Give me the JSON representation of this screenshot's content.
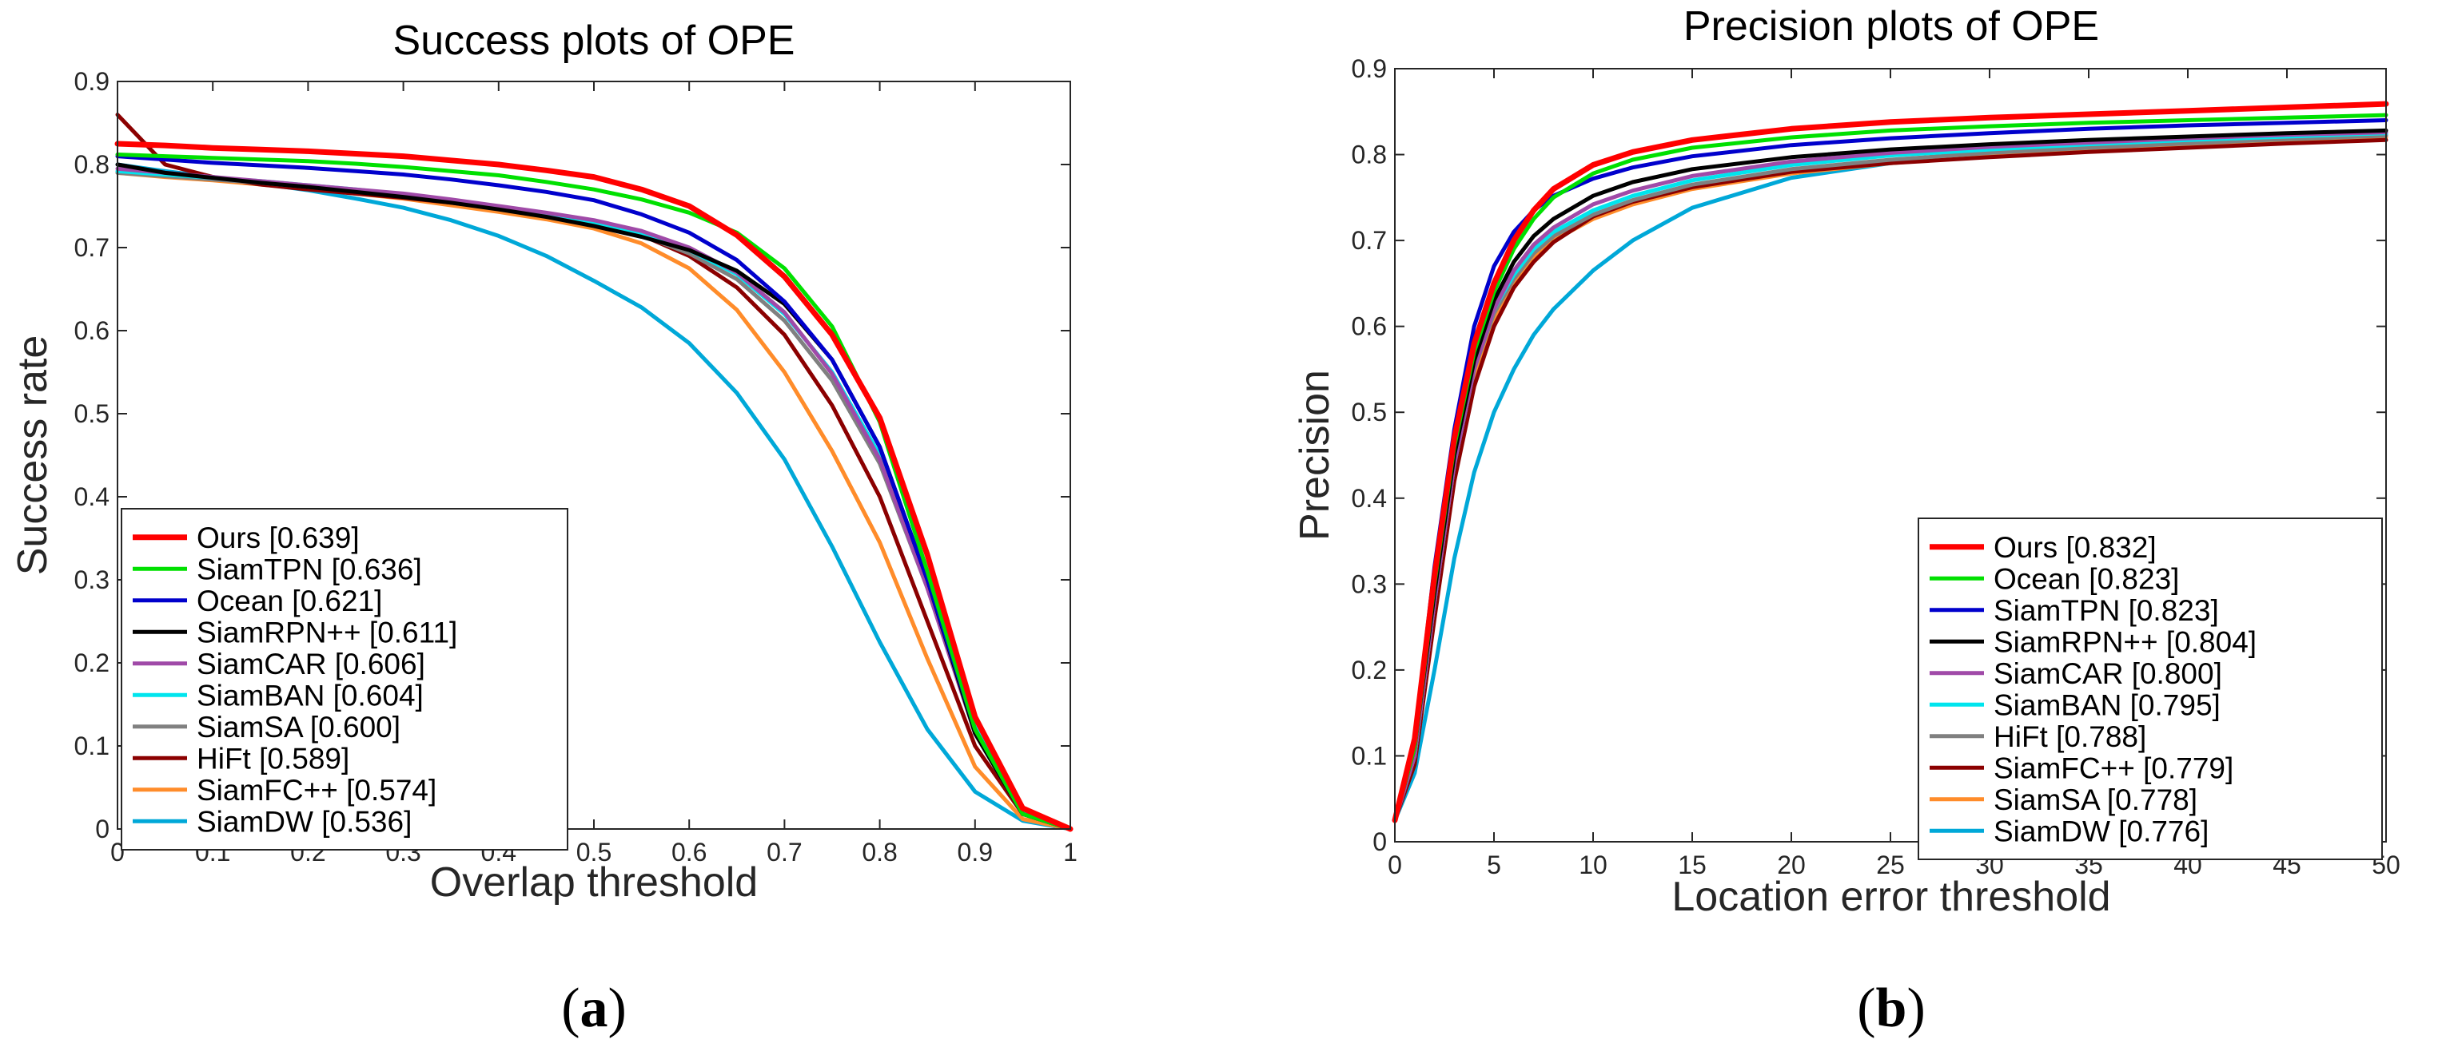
{
  "chart_data": [
    {
      "type": "line",
      "title": "Success plots of OPE",
      "xlabel": "Overlap threshold",
      "ylabel": "Success rate",
      "xlim": [
        0,
        1
      ],
      "ylim": [
        0,
        0.9
      ],
      "xticks": [
        "0",
        "0.1",
        "0.2",
        "0.3",
        "0.4",
        "0.5",
        "0.6",
        "0.7",
        "0.8",
        "0.9",
        "1"
      ],
      "yticks": [
        "0",
        "0.1",
        "0.2",
        "0.3",
        "0.4",
        "0.5",
        "0.6",
        "0.7",
        "0.8",
        "0.9"
      ],
      "legend_position": "bottom-left",
      "subfigure_label": {
        "open": "(",
        "letter": "a",
        "close": ")"
      },
      "x": [
        0,
        0.05,
        0.1,
        0.15,
        0.2,
        0.25,
        0.3,
        0.35,
        0.4,
        0.45,
        0.5,
        0.55,
        0.6,
        0.65,
        0.7,
        0.75,
        0.8,
        0.85,
        0.9,
        0.95,
        1.0
      ],
      "series": [
        {
          "name": "Ours [0.639]",
          "color": "#ff0000",
          "values": [
            0.825,
            0.823,
            0.82,
            0.818,
            0.816,
            0.813,
            0.81,
            0.805,
            0.8,
            0.793,
            0.785,
            0.77,
            0.75,
            0.715,
            0.665,
            0.595,
            0.495,
            0.33,
            0.135,
            0.025,
            0.0
          ]
        },
        {
          "name": "SiamTPN [0.636]",
          "color": "#00e000",
          "values": [
            0.812,
            0.81,
            0.808,
            0.806,
            0.804,
            0.801,
            0.797,
            0.792,
            0.787,
            0.779,
            0.77,
            0.758,
            0.742,
            0.718,
            0.675,
            0.605,
            0.49,
            0.31,
            0.12,
            0.018,
            0.0
          ]
        },
        {
          "name": "Ocean [0.621]",
          "color": "#0000cc",
          "values": [
            0.81,
            0.806,
            0.802,
            0.799,
            0.796,
            0.792,
            0.788,
            0.782,
            0.775,
            0.767,
            0.757,
            0.74,
            0.718,
            0.685,
            0.635,
            0.565,
            0.46,
            0.3,
            0.12,
            0.018,
            0.0
          ]
        },
        {
          "name": "SiamRPN++ [0.611]",
          "color": "#000000",
          "values": [
            0.8,
            0.79,
            0.784,
            0.778,
            0.773,
            0.767,
            0.761,
            0.754,
            0.746,
            0.737,
            0.726,
            0.713,
            0.697,
            0.672,
            0.632,
            0.565,
            0.46,
            0.3,
            0.115,
            0.018,
            0.0
          ]
        },
        {
          "name": "SiamCAR [0.606]",
          "color": "#a04aa8",
          "values": [
            0.795,
            0.79,
            0.785,
            0.78,
            0.775,
            0.77,
            0.765,
            0.758,
            0.75,
            0.742,
            0.733,
            0.72,
            0.7,
            0.67,
            0.622,
            0.548,
            0.445,
            0.29,
            0.115,
            0.018,
            0.0
          ]
        },
        {
          "name": "SiamBAN [0.604]",
          "color": "#00e5ee",
          "values": [
            0.792,
            0.788,
            0.784,
            0.78,
            0.775,
            0.77,
            0.764,
            0.757,
            0.749,
            0.741,
            0.731,
            0.717,
            0.697,
            0.668,
            0.62,
            0.55,
            0.45,
            0.3,
            0.125,
            0.02,
            0.0
          ]
        },
        {
          "name": "SiamSA [0.600]",
          "color": "#808080",
          "values": [
            0.79,
            0.786,
            0.782,
            0.778,
            0.773,
            0.768,
            0.762,
            0.755,
            0.747,
            0.739,
            0.729,
            0.715,
            0.693,
            0.662,
            0.612,
            0.54,
            0.44,
            0.29,
            0.12,
            0.02,
            0.0
          ]
        },
        {
          "name": "HiFt [0.589]",
          "color": "#8b0000",
          "values": [
            0.86,
            0.8,
            0.785,
            0.776,
            0.77,
            0.765,
            0.76,
            0.754,
            0.747,
            0.739,
            0.729,
            0.715,
            0.69,
            0.652,
            0.595,
            0.51,
            0.4,
            0.25,
            0.1,
            0.018,
            0.0
          ]
        },
        {
          "name": "SiamFC++ [0.574]",
          "color": "#ff8c2a",
          "values": [
            0.79,
            0.785,
            0.781,
            0.776,
            0.771,
            0.765,
            0.759,
            0.751,
            0.743,
            0.734,
            0.723,
            0.705,
            0.675,
            0.625,
            0.55,
            0.455,
            0.345,
            0.205,
            0.075,
            0.012,
            0.0
          ]
        },
        {
          "name": "SiamDW [0.536]",
          "color": "#00a8d8",
          "values": [
            0.8,
            0.792,
            0.785,
            0.777,
            0.769,
            0.759,
            0.748,
            0.733,
            0.714,
            0.69,
            0.66,
            0.628,
            0.585,
            0.525,
            0.445,
            0.34,
            0.225,
            0.12,
            0.045,
            0.01,
            0.0
          ]
        }
      ]
    },
    {
      "type": "line",
      "title": "Precision plots of OPE",
      "xlabel": "Location error threshold",
      "ylabel": "Precision",
      "xlim": [
        0,
        50
      ],
      "ylim": [
        0,
        0.9
      ],
      "xticks": [
        "0",
        "5",
        "10",
        "15",
        "20",
        "25",
        "30",
        "35",
        "40",
        "45",
        "50"
      ],
      "yticks": [
        "0",
        "0.1",
        "0.2",
        "0.3",
        "0.4",
        "0.5",
        "0.6",
        "0.7",
        "0.8",
        "0.9"
      ],
      "legend_position": "bottom-right",
      "subfigure_label": {
        "open": "(",
        "letter": "b",
        "close": ")"
      },
      "x": [
        0,
        1,
        2,
        3,
        4,
        5,
        6,
        7,
        8,
        10,
        12,
        15,
        20,
        25,
        30,
        35,
        40,
        45,
        50
      ],
      "series": [
        {
          "name": "Ours [0.832]",
          "color": "#ff0000",
          "values": [
            0.025,
            0.12,
            0.31,
            0.47,
            0.58,
            0.65,
            0.7,
            0.735,
            0.76,
            0.788,
            0.803,
            0.817,
            0.83,
            0.838,
            0.843,
            0.847,
            0.851,
            0.855,
            0.859
          ]
        },
        {
          "name": "Ocean [0.823]",
          "color": "#00e000",
          "values": [
            0.025,
            0.11,
            0.3,
            0.46,
            0.57,
            0.64,
            0.69,
            0.725,
            0.75,
            0.778,
            0.794,
            0.808,
            0.82,
            0.828,
            0.833,
            0.837,
            0.84,
            0.843,
            0.846
          ]
        },
        {
          "name": "SiamTPN [0.823]",
          "color": "#0000cc",
          "values": [
            0.025,
            0.12,
            0.32,
            0.48,
            0.6,
            0.67,
            0.71,
            0.735,
            0.752,
            0.772,
            0.785,
            0.798,
            0.811,
            0.819,
            0.825,
            0.83,
            0.834,
            0.837,
            0.84
          ]
        },
        {
          "name": "SiamRPN++ [0.804]",
          "color": "#000000",
          "values": [
            0.025,
            0.11,
            0.29,
            0.45,
            0.56,
            0.63,
            0.675,
            0.705,
            0.725,
            0.752,
            0.768,
            0.783,
            0.797,
            0.806,
            0.812,
            0.817,
            0.821,
            0.825,
            0.828
          ]
        },
        {
          "name": "SiamCAR [0.800]",
          "color": "#a04aa8",
          "values": [
            0.025,
            0.1,
            0.28,
            0.44,
            0.55,
            0.62,
            0.665,
            0.695,
            0.715,
            0.742,
            0.758,
            0.775,
            0.792,
            0.802,
            0.809,
            0.814,
            0.819,
            0.823,
            0.826
          ]
        },
        {
          "name": "SiamBAN [0.795]",
          "color": "#00e5ee",
          "values": [
            0.025,
            0.1,
            0.28,
            0.44,
            0.55,
            0.62,
            0.66,
            0.69,
            0.71,
            0.735,
            0.752,
            0.77,
            0.788,
            0.799,
            0.806,
            0.812,
            0.817,
            0.821,
            0.825
          ]
        },
        {
          "name": "HiFt [0.788]",
          "color": "#808080",
          "values": [
            0.025,
            0.1,
            0.28,
            0.44,
            0.55,
            0.615,
            0.655,
            0.685,
            0.705,
            0.73,
            0.747,
            0.765,
            0.783,
            0.794,
            0.802,
            0.808,
            0.813,
            0.818,
            0.822
          ]
        },
        {
          "name": "SiamFC++ [0.779]",
          "color": "#8b0000",
          "values": [
            0.025,
            0.09,
            0.26,
            0.42,
            0.53,
            0.6,
            0.645,
            0.675,
            0.698,
            0.728,
            0.745,
            0.762,
            0.78,
            0.79,
            0.797,
            0.803,
            0.808,
            0.813,
            0.817
          ]
        },
        {
          "name": "SiamSA [0.778]",
          "color": "#ff8c2a",
          "values": [
            0.025,
            0.1,
            0.27,
            0.43,
            0.54,
            0.61,
            0.65,
            0.68,
            0.7,
            0.725,
            0.742,
            0.76,
            0.778,
            0.79,
            0.798,
            0.805,
            0.81,
            0.815,
            0.82
          ]
        },
        {
          "name": "SiamDW [0.776]",
          "color": "#00a8d8",
          "values": [
            0.025,
            0.08,
            0.2,
            0.33,
            0.43,
            0.5,
            0.55,
            0.59,
            0.62,
            0.665,
            0.7,
            0.738,
            0.773,
            0.79,
            0.8,
            0.807,
            0.813,
            0.818,
            0.823
          ]
        }
      ]
    }
  ]
}
